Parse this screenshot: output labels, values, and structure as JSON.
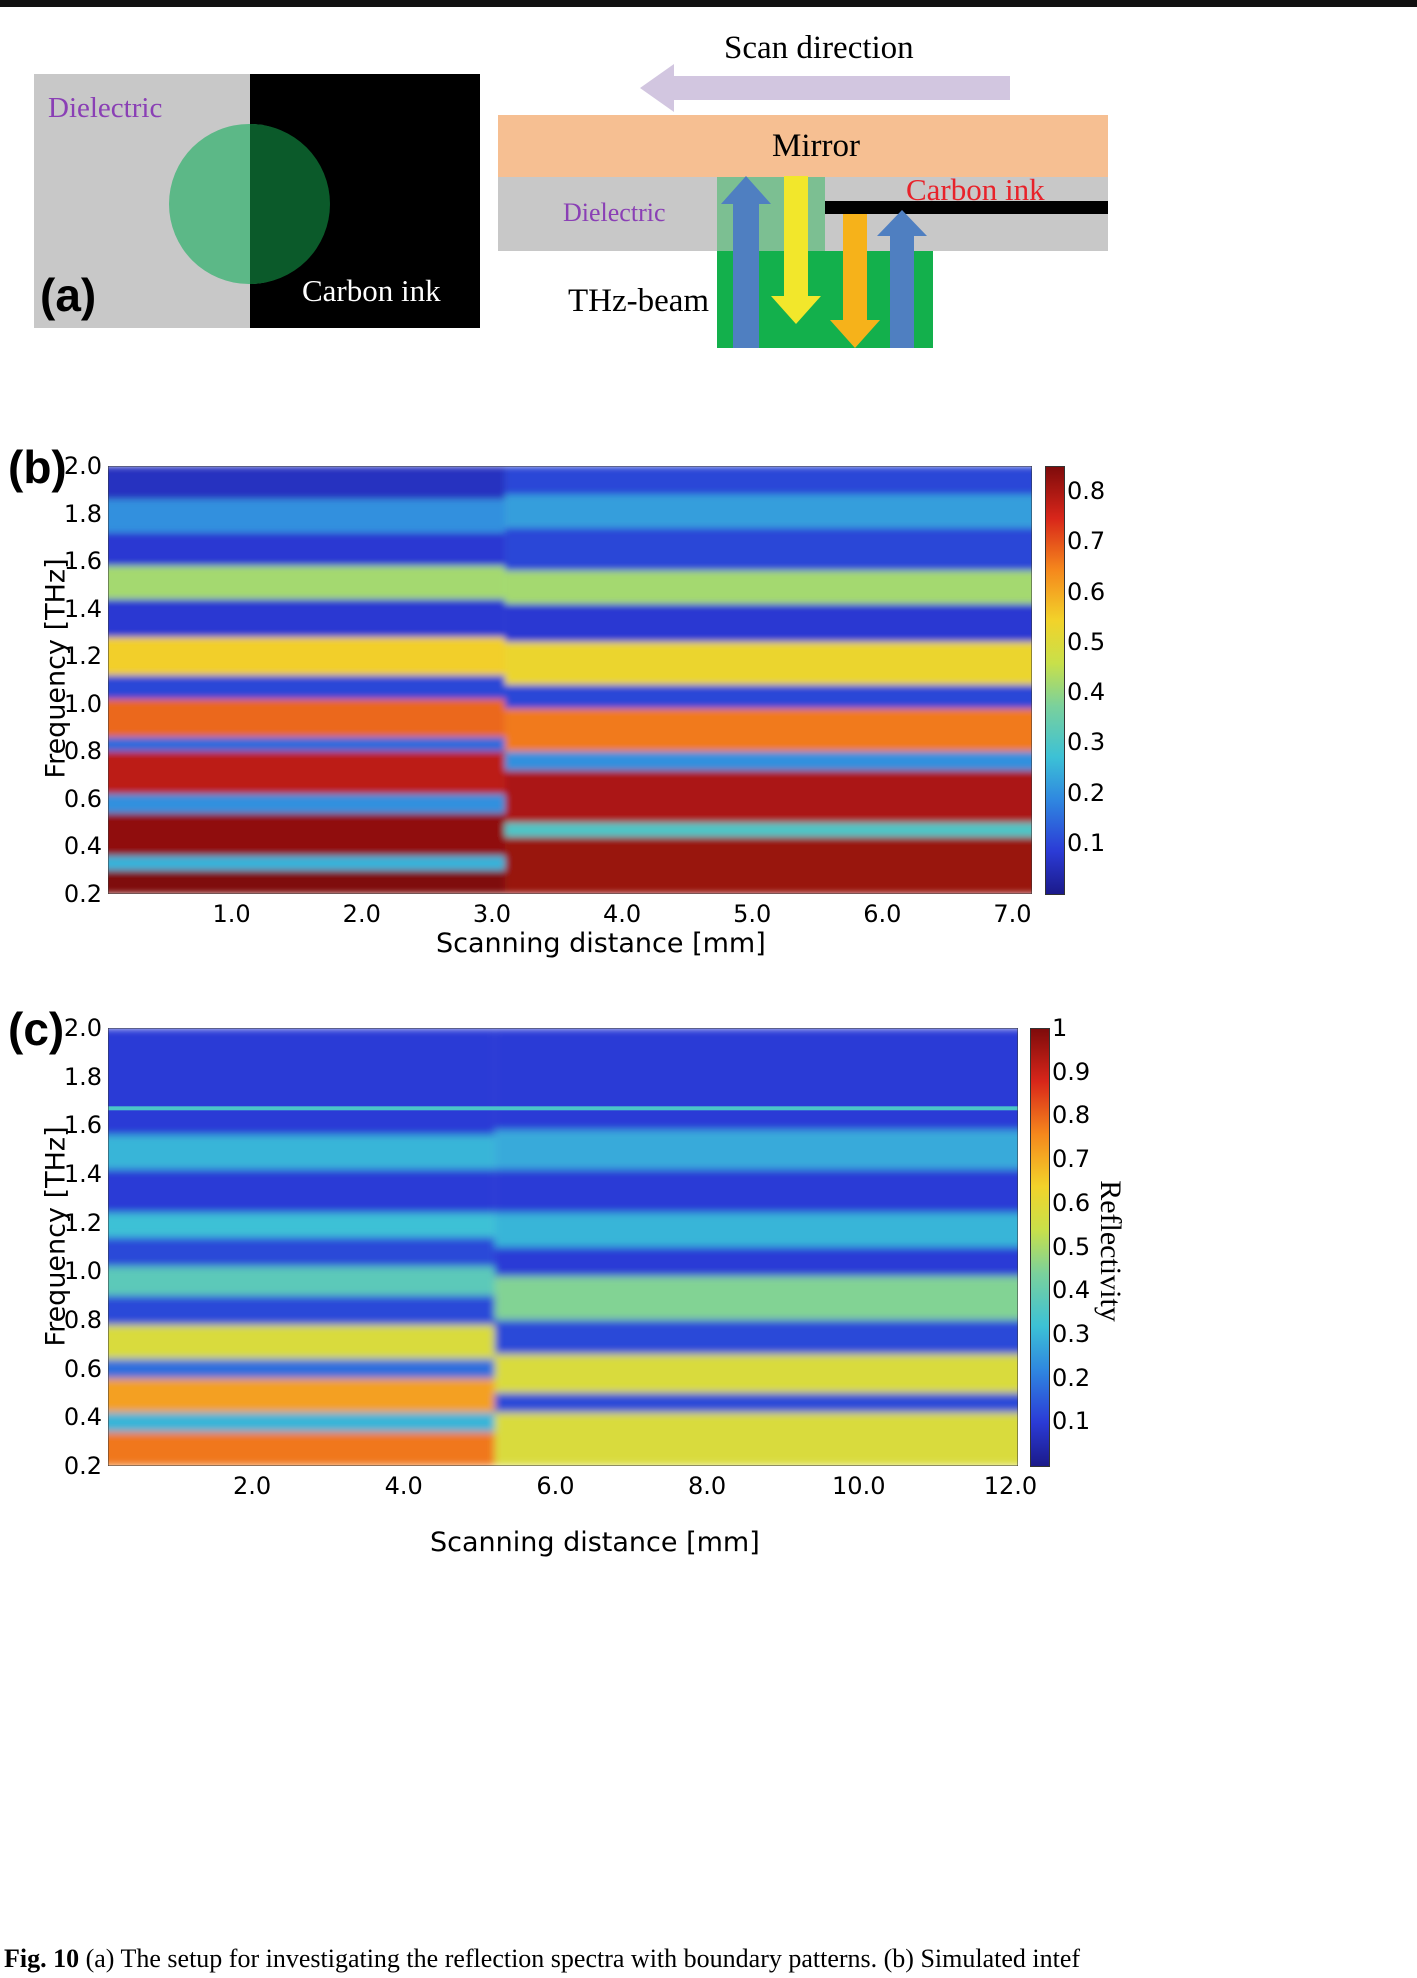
{
  "panel_a": {
    "label": "(a)",
    "left_sketch": {
      "dielectric_label": "Dielectric",
      "carbon_ink_label": "Carbon ink"
    },
    "right_sketch": {
      "scan_direction_label": "Scan direction",
      "mirror_label": "Mirror",
      "dielectric_label": "Dielectric",
      "carbon_ink_label": "Carbon ink",
      "thz_beam_label": "THz-beam"
    },
    "colors": {
      "dielectric": "#c8c8c8",
      "carbon_ink": "#000000",
      "beam_light": "#5cb887",
      "beam_dark": "#0b5a2a",
      "beam_green": "#13b04c",
      "mirror": "#f6bf92",
      "scan_arrow": "#d2c6e0",
      "dielectric_text": "#8a3fb5",
      "carbon_text": "#e8222a",
      "arrow_blue": "#4f7fc1",
      "arrow_yellow": "#f2e72b",
      "arrow_orange": "#f6b21a"
    }
  },
  "chart_data": [
    {
      "type": "heatmap",
      "panel_label": "(b)",
      "title": "",
      "xlabel": "Scanning distance [mm]",
      "ylabel": "Frequency [THz]",
      "xlim": [
        0.05,
        7.15
      ],
      "ylim": [
        0.2,
        2.0
      ],
      "x_ticks": [
        "1.0",
        "2.0",
        "3.0",
        "4.0",
        "5.0",
        "6.0",
        "7.0"
      ],
      "y_ticks": [
        "0.2",
        "0.4",
        "0.6",
        "0.8",
        "1.0",
        "1.2",
        "1.4",
        "1.6",
        "1.8",
        "2.0"
      ],
      "colorbar": {
        "min": 0,
        "max": 0.85,
        "ticks": [
          "0.1",
          "0.2",
          "0.3",
          "0.4",
          "0.5",
          "0.6",
          "0.7",
          "0.8"
        ],
        "label": ""
      },
      "transition_x_mm": 3.1,
      "left_region_bands": [
        {
          "f_low": 0.2,
          "f_high": 0.3,
          "value": 0.85
        },
        {
          "f_low": 0.3,
          "f_high": 0.36,
          "value": 0.25
        },
        {
          "f_low": 0.36,
          "f_high": 0.54,
          "value": 0.83
        },
        {
          "f_low": 0.54,
          "f_high": 0.62,
          "value": 0.2
        },
        {
          "f_low": 0.62,
          "f_high": 0.8,
          "value": 0.78
        },
        {
          "f_low": 0.8,
          "f_high": 0.86,
          "value": 0.15
        },
        {
          "f_low": 0.86,
          "f_high": 1.02,
          "value": 0.68
        },
        {
          "f_low": 1.02,
          "f_high": 1.12,
          "value": 0.1
        },
        {
          "f_low": 1.12,
          "f_high": 1.28,
          "value": 0.55
        },
        {
          "f_low": 1.28,
          "f_high": 1.44,
          "value": 0.08
        },
        {
          "f_low": 1.44,
          "f_high": 1.58,
          "value": 0.42
        },
        {
          "f_low": 1.58,
          "f_high": 1.72,
          "value": 0.08
        },
        {
          "f_low": 1.72,
          "f_high": 1.86,
          "value": 0.2
        },
        {
          "f_low": 1.86,
          "f_high": 2.0,
          "value": 0.06
        }
      ],
      "right_region_bands": [
        {
          "f_low": 0.2,
          "f_high": 0.44,
          "value": 0.82
        },
        {
          "f_low": 0.44,
          "f_high": 0.5,
          "value": 0.3
        },
        {
          "f_low": 0.5,
          "f_high": 0.72,
          "value": 0.8
        },
        {
          "f_low": 0.72,
          "f_high": 0.8,
          "value": 0.2
        },
        {
          "f_low": 0.8,
          "f_high": 0.98,
          "value": 0.66
        },
        {
          "f_low": 0.98,
          "f_high": 1.08,
          "value": 0.1
        },
        {
          "f_low": 1.08,
          "f_high": 1.26,
          "value": 0.53
        },
        {
          "f_low": 1.26,
          "f_high": 1.42,
          "value": 0.08
        },
        {
          "f_low": 1.42,
          "f_high": 1.56,
          "value": 0.42
        },
        {
          "f_low": 1.56,
          "f_high": 1.74,
          "value": 0.1
        },
        {
          "f_low": 1.74,
          "f_high": 1.88,
          "value": 0.22
        },
        {
          "f_low": 1.88,
          "f_high": 2.0,
          "value": 0.1
        }
      ]
    },
    {
      "type": "heatmap",
      "panel_label": "(c)",
      "title": "",
      "xlabel": "Scanning distance [mm]",
      "ylabel": "Frequency [THz]",
      "xlim": [
        0.1,
        12.1
      ],
      "ylim": [
        0.2,
        2.0
      ],
      "x_ticks": [
        "2.0",
        "4.0",
        "6.0",
        "8.0",
        "10.0",
        "12.0"
      ],
      "y_ticks": [
        "0.2",
        "0.4",
        "0.6",
        "0.8",
        "1.0",
        "1.2",
        "1.4",
        "1.6",
        "1.8",
        "2.0"
      ],
      "colorbar": {
        "min": 0,
        "max": 1,
        "ticks": [
          "0.1",
          "0.2",
          "0.3",
          "0.4",
          "0.5",
          "0.6",
          "0.7",
          "0.8",
          "0.9",
          "1"
        ],
        "label": "Reflectivity"
      },
      "transition_x_mm": 5.2,
      "left_region_bands": [
        {
          "f_low": 0.2,
          "f_high": 0.34,
          "value": 0.78
        },
        {
          "f_low": 0.34,
          "f_high": 0.42,
          "value": 0.3
        },
        {
          "f_low": 0.42,
          "f_high": 0.56,
          "value": 0.72
        },
        {
          "f_low": 0.56,
          "f_high": 0.64,
          "value": 0.18
        },
        {
          "f_low": 0.64,
          "f_high": 0.78,
          "value": 0.58
        },
        {
          "f_low": 0.78,
          "f_high": 0.9,
          "value": 0.12
        },
        {
          "f_low": 0.9,
          "f_high": 1.02,
          "value": 0.38
        },
        {
          "f_low": 1.02,
          "f_high": 1.14,
          "value": 0.12
        },
        {
          "f_low": 1.14,
          "f_high": 1.24,
          "value": 0.32
        },
        {
          "f_low": 1.24,
          "f_high": 1.42,
          "value": 0.1
        },
        {
          "f_low": 1.42,
          "f_high": 1.56,
          "value": 0.3
        },
        {
          "f_low": 1.56,
          "f_high": 2.0,
          "value": 0.1
        }
      ],
      "right_region_bands": [
        {
          "f_low": 0.2,
          "f_high": 0.42,
          "value": 0.58
        },
        {
          "f_low": 0.42,
          "f_high": 0.5,
          "value": 0.12
        },
        {
          "f_low": 0.5,
          "f_high": 0.66,
          "value": 0.58
        },
        {
          "f_low": 0.66,
          "f_high": 0.8,
          "value": 0.12
        },
        {
          "f_low": 0.8,
          "f_high": 0.98,
          "value": 0.45
        },
        {
          "f_low": 0.98,
          "f_high": 1.1,
          "value": 0.1
        },
        {
          "f_low": 1.1,
          "f_high": 1.24,
          "value": 0.3
        },
        {
          "f_low": 1.24,
          "f_high": 1.42,
          "value": 0.1
        },
        {
          "f_low": 1.42,
          "f_high": 1.58,
          "value": 0.28
        },
        {
          "f_low": 1.58,
          "f_high": 2.0,
          "value": 0.1
        }
      ],
      "noise_line_f": 1.67
    }
  ],
  "caption": {
    "label": "Fig. 10",
    "text": "(a) The setup for investigating the reflection spectra with boundary patterns. (b) Simulated intef"
  }
}
